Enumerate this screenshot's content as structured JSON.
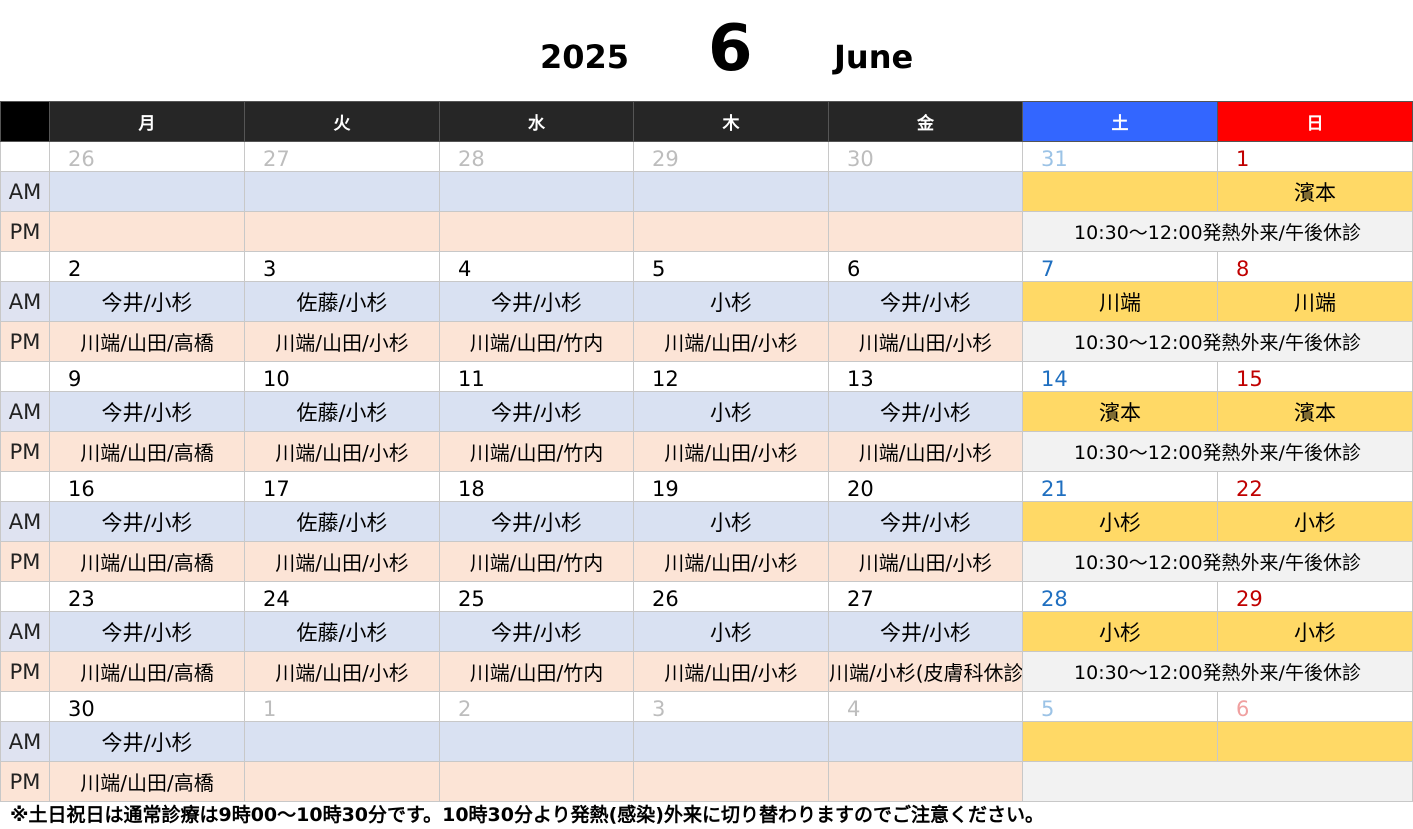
{
  "header": {
    "year": "2025",
    "month_number": "6",
    "month_name": "June"
  },
  "weekdays": [
    "月",
    "火",
    "水",
    "木",
    "金",
    "土",
    "日"
  ],
  "labels": {
    "am": "AM",
    "pm": "PM"
  },
  "weeks": [
    {
      "dates": [
        "26",
        "27",
        "28",
        "29",
        "30",
        "31",
        "1"
      ],
      "am": [
        "",
        "",
        "",
        "",
        "",
        "",
        "濱本"
      ],
      "pm": [
        "",
        "",
        "",
        "",
        ""
      ],
      "weekend_pm": "10:30～12:00発熱外来/午後休診"
    },
    {
      "dates": [
        "2",
        "3",
        "4",
        "5",
        "6",
        "7",
        "8"
      ],
      "am": [
        "今井/小杉",
        "佐藤/小杉",
        "今井/小杉",
        "小杉",
        "今井/小杉",
        "川端",
        "川端"
      ],
      "pm": [
        "川端/山田/高橋",
        "川端/山田/小杉",
        "川端/山田/竹内",
        "川端/山田/小杉",
        "川端/山田/小杉"
      ],
      "weekend_pm": "10:30～12:00発熱外来/午後休診"
    },
    {
      "dates": [
        "9",
        "10",
        "11",
        "12",
        "13",
        "14",
        "15"
      ],
      "am": [
        "今井/小杉",
        "佐藤/小杉",
        "今井/小杉",
        "小杉",
        "今井/小杉",
        "濱本",
        "濱本"
      ],
      "pm": [
        "川端/山田/高橋",
        "川端/山田/小杉",
        "川端/山田/竹内",
        "川端/山田/小杉",
        "川端/山田/小杉"
      ],
      "weekend_pm": "10:30～12:00発熱外来/午後休診"
    },
    {
      "dates": [
        "16",
        "17",
        "18",
        "19",
        "20",
        "21",
        "22"
      ],
      "am": [
        "今井/小杉",
        "佐藤/小杉",
        "今井/小杉",
        "小杉",
        "今井/小杉",
        "小杉",
        "小杉"
      ],
      "pm": [
        "川端/山田/高橋",
        "川端/山田/小杉",
        "川端/山田/竹内",
        "川端/山田/小杉",
        "川端/山田/小杉"
      ],
      "weekend_pm": "10:30～12:00発熱外来/午後休診"
    },
    {
      "dates": [
        "23",
        "24",
        "25",
        "26",
        "27",
        "28",
        "29"
      ],
      "am": [
        "今井/小杉",
        "佐藤/小杉",
        "今井/小杉",
        "小杉",
        "今井/小杉",
        "小杉",
        "小杉"
      ],
      "pm": [
        "川端/山田/高橋",
        "川端/山田/小杉",
        "川端/山田/竹内",
        "川端/山田/小杉",
        "川端/小杉(皮膚科休診)"
      ],
      "weekend_pm": "10:30～12:00発熱外来/午後休診"
    },
    {
      "dates": [
        "30",
        "1",
        "2",
        "3",
        "4",
        "5",
        "6"
      ],
      "am": [
        "今井/小杉",
        "",
        "",
        "",
        "",
        "",
        ""
      ],
      "pm": [
        "川端/山田/高橋",
        "",
        "",
        "",
        ""
      ],
      "weekend_pm": ""
    }
  ],
  "note": "※土日祝日は通常診療は9時00～10時30分です。10時30分より発熱(感染)外来に切り替わりますのでご注意ください。",
  "colors": {
    "header_bg": "#262626",
    "saturday": "#3366ff",
    "sunday": "#ff0000",
    "am_weekday": "#d9e1f2",
    "pm_weekday": "#fce4d6",
    "am_weekend": "#ffd966",
    "pm_weekend": "#f2f2f2"
  }
}
